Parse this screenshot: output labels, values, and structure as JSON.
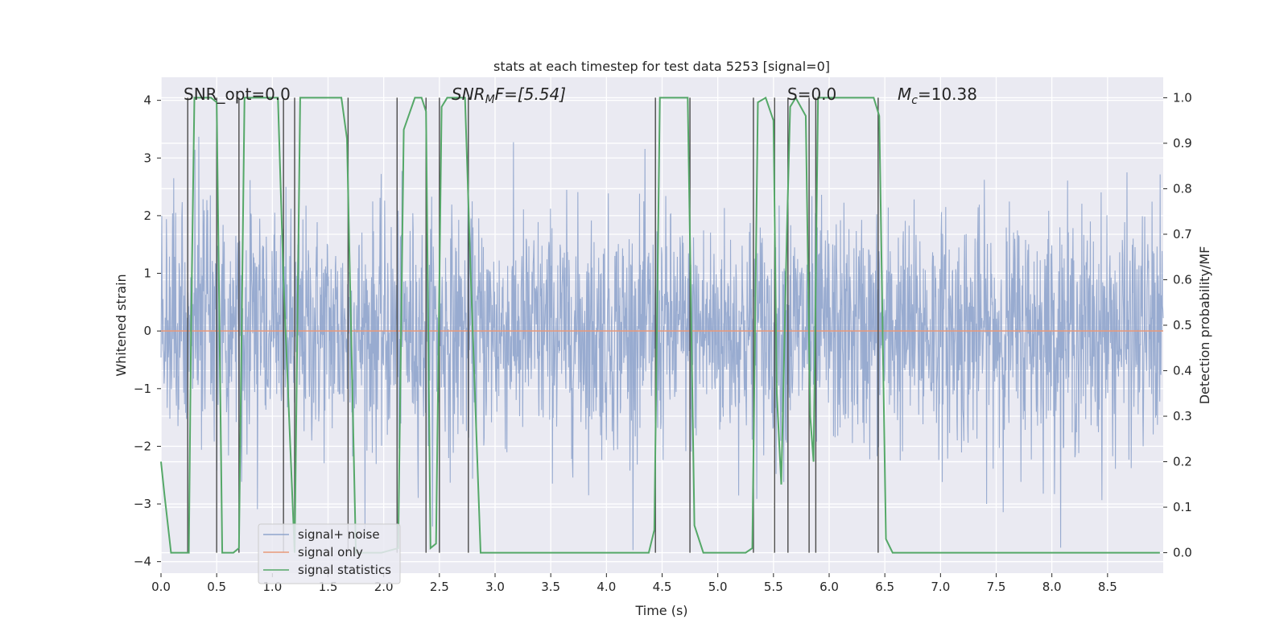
{
  "chart_data": {
    "type": "line",
    "title": "stats at each timestep for test data 5253 [signal=0]",
    "xlabel": "Time (s)",
    "ylabel": "Whitened strain",
    "y2label": "Detection probability/MF",
    "xlim": [
      0.0,
      9.0
    ],
    "ylim": [
      -4.2,
      4.4
    ],
    "y2lim": [
      -0.045,
      1.045
    ],
    "xticks": [
      0.0,
      0.5,
      1.0,
      1.5,
      2.0,
      2.5,
      3.0,
      3.5,
      4.0,
      4.5,
      5.0,
      5.5,
      6.0,
      6.5,
      7.0,
      7.5,
      8.0,
      8.5
    ],
    "xtick_labels": [
      "0.0",
      "0.5",
      "1.0",
      "1.5",
      "2.0",
      "2.5",
      "3.0",
      "3.5",
      "4.0",
      "4.5",
      "5.0",
      "5.5",
      "6.0",
      "6.5",
      "7.0",
      "7.5",
      "8.0",
      "8.5"
    ],
    "yticks": [
      -4,
      -3,
      -2,
      -1,
      0,
      1,
      2,
      3,
      4
    ],
    "ytick_labels": [
      "−4",
      "−3",
      "−2",
      "−1",
      "0",
      "1",
      "2",
      "3",
      "4"
    ],
    "y2ticks": [
      0.0,
      0.1,
      0.2,
      0.3,
      0.4,
      0.5,
      0.6,
      0.7,
      0.8,
      0.9,
      1.0
    ],
    "y2tick_labels": [
      "0.0",
      "0.1",
      "0.2",
      "0.3",
      "0.4",
      "0.5",
      "0.6",
      "0.7",
      "0.8",
      "0.9",
      "1.0"
    ],
    "grid": true,
    "legend_position": "lower-left",
    "annotations": {
      "snr_opt": "SNR_opt=0.0",
      "snr_mf_base": "SNR",
      "snr_mf_sub": "M",
      "snr_mf_rest": "F=[5.54]",
      "s_value": "S=0.0",
      "mc_base": "M",
      "mc_sub": "c",
      "mc_rest": "=10.38"
    },
    "series": [
      {
        "name": "signal+ noise",
        "color": "#8fa4cc",
        "description_of_values": "whitened noise, amplitude range",
        "typical_range": [
          -3.8,
          3.9
        ],
        "noise_std": 1.0
      },
      {
        "name": "signal only",
        "color": "#e8997a",
        "constant_value": 0.0
      },
      {
        "name": "signal statistics",
        "color": "#55a868",
        "axis": "right",
        "x": [
          0.0,
          0.03,
          0.09,
          0.25,
          0.27,
          0.3,
          0.45,
          0.5,
          0.55,
          0.65,
          0.7,
          0.75,
          1.05,
          1.1,
          1.2,
          1.25,
          1.62,
          1.67,
          1.75,
          1.98,
          2.13,
          2.18,
          2.28,
          2.34,
          2.38,
          2.42,
          2.47,
          2.52,
          2.57,
          2.73,
          2.78,
          2.87,
          3.2,
          4.38,
          4.43,
          4.48,
          4.73,
          4.79,
          4.87,
          5.0,
          5.25,
          5.31,
          5.36,
          5.43,
          5.5,
          5.53,
          5.57,
          5.62,
          5.65,
          5.7,
          5.79,
          5.83,
          5.86,
          5.9,
          6.4,
          6.45,
          6.51,
          6.57,
          7.5,
          8.97
        ],
        "y": [
          0.2,
          0.13,
          0.0,
          0.0,
          0.49,
          1.0,
          1.0,
          0.99,
          0.0,
          0.0,
          0.01,
          1.0,
          1.0,
          0.6,
          0.0,
          1.0,
          1.0,
          0.91,
          0.0,
          0.0,
          0.01,
          0.93,
          1.0,
          1.0,
          0.97,
          0.01,
          0.02,
          0.98,
          1.0,
          1.0,
          0.62,
          0.0,
          0.0,
          0.0,
          0.05,
          1.0,
          1.0,
          0.06,
          0.0,
          0.0,
          0.0,
          0.01,
          0.99,
          1.0,
          0.95,
          0.35,
          0.15,
          0.7,
          0.98,
          1.0,
          0.96,
          0.3,
          0.2,
          1.0,
          1.0,
          0.96,
          0.03,
          0.0,
          0.0,
          0.0
        ]
      }
    ],
    "vertical_lines_x": [
      0.24,
      0.5,
      0.7,
      1.1,
      1.2,
      1.68,
      2.12,
      2.38,
      2.5,
      2.76,
      4.44,
      4.75,
      5.32,
      5.51,
      5.63,
      5.82,
      5.88,
      6.44
    ],
    "vertical_line_color": "#4a4a4a"
  }
}
